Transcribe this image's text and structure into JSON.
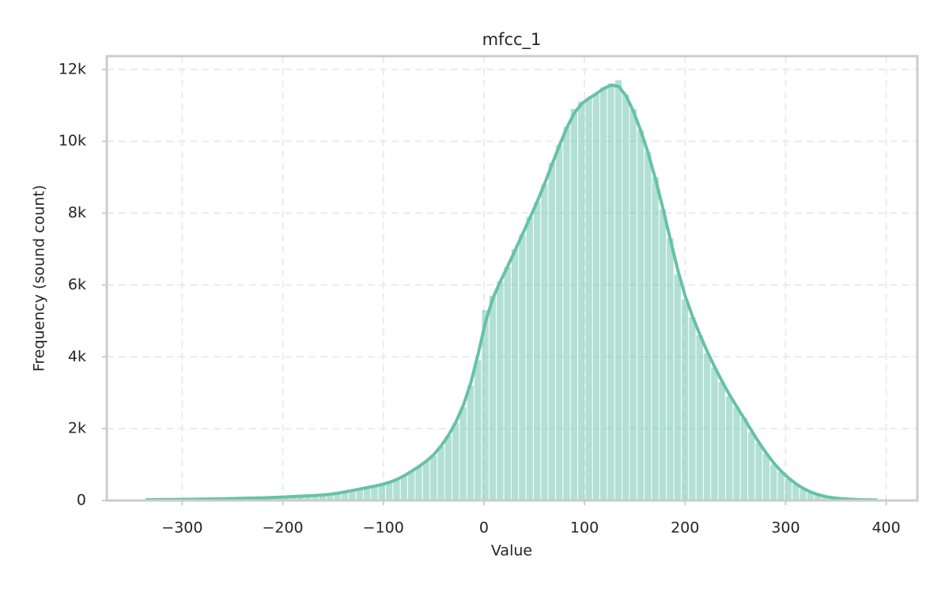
{
  "chart_data": {
    "type": "histogram",
    "title": "mfcc_1",
    "x_label": "Value",
    "y_label": "Frequency (sound count)",
    "color": "#66c2a5",
    "kde": true,
    "grid": true,
    "bins": [
      -340,
      -332.65,
      -325.3,
      -317.95,
      -310.6,
      -303.25,
      -295.9,
      -288.55,
      -281.2,
      -273.85,
      -266.5,
      -259.15,
      -251.8,
      -244.45,
      -237.1,
      -229.75,
      -222.4,
      -215.05,
      -207.7,
      -200.35,
      -193,
      -185.65,
      -178.3,
      -170.95,
      -163.6,
      -156.25,
      -148.9,
      -141.55,
      -134.2,
      -126.85,
      -119.5,
      -112.15,
      -104.8,
      -97.45,
      -90.1,
      -82.75,
      -75.4,
      -68.05,
      -60.7,
      -53.35,
      -46,
      -38.65,
      -31.3,
      -23.95,
      -16.6,
      -9.25,
      -1.9,
      5.45,
      12.8,
      20.15,
      27.5,
      34.85,
      42.2,
      49.55,
      56.9,
      64.25,
      71.6,
      78.95,
      86.3,
      93.65,
      101,
      108.35,
      115.7,
      123.05,
      130.4,
      137.75,
      145.1,
      152.45,
      159.8,
      167.15,
      174.5,
      181.85,
      189.2,
      196.55,
      203.9,
      211.25,
      218.6,
      225.95,
      233.3,
      240.65,
      248,
      255.35,
      262.7,
      270.05,
      277.4,
      284.75,
      292.1,
      299.45,
      306.8,
      314.15,
      321.5,
      328.85,
      336.2,
      343.55,
      350.9,
      358.25,
      365.6,
      372.95,
      380.3,
      387.65,
      395
    ],
    "counts": [
      20,
      20,
      25,
      25,
      30,
      30,
      35,
      35,
      40,
      40,
      45,
      50,
      55,
      60,
      65,
      70,
      75,
      80,
      90,
      100,
      110,
      120,
      130,
      140,
      150,
      170,
      200,
      240,
      280,
      320,
      360,
      400,
      440,
      500,
      570,
      680,
      820,
      950,
      1080,
      1250,
      1500,
      1800,
      2150,
      2600,
      3200,
      3900,
      5300,
      5700,
      6100,
      6500,
      7000,
      7400,
      7900,
      8300,
      8800,
      9400,
      9900,
      10400,
      10900,
      11100,
      11200,
      11300,
      11500,
      11600,
      11700,
      11300,
      10900,
      10300,
      9700,
      9000,
      8100,
      7300,
      6300,
      5600,
      5100,
      4600,
      4100,
      3700,
      3300,
      2900,
      2600,
      2300,
      1900,
      1600,
      1300,
      1000,
      800,
      600,
      450,
      320,
      220,
      150,
      100,
      70,
      50,
      35,
      25,
      20,
      15,
      10
    ],
    "xlim": [
      -375,
      431
    ],
    "ylim": [
      0,
      12370
    ],
    "xticks": [
      {
        "value": -300,
        "label": "−300"
      },
      {
        "value": -200,
        "label": "−200"
      },
      {
        "value": -100,
        "label": "−100"
      },
      0,
      100,
      200,
      300,
      400
    ],
    "yticks": [
      0,
      {
        "value": 2000,
        "label": "2k"
      },
      {
        "value": 4000,
        "label": "4k"
      },
      {
        "value": 6000,
        "label": "6k"
      },
      {
        "value": 8000,
        "label": "8k"
      },
      {
        "value": 10000,
        "label": "10k"
      },
      {
        "value": 12000,
        "label": "12k"
      }
    ]
  }
}
